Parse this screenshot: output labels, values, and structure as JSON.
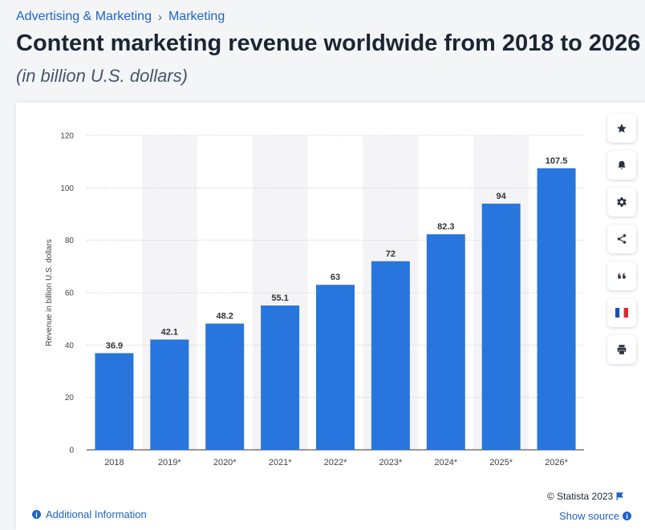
{
  "breadcrumb": {
    "items": [
      "Advertising & Marketing",
      "Marketing"
    ],
    "separator": "›"
  },
  "header": {
    "title": "Content marketing revenue worldwide from 2018 to 2026",
    "subtitle": "(in billion U.S. dollars)"
  },
  "chart_data": {
    "type": "bar",
    "categories": [
      "2018",
      "2019*",
      "2020*",
      "2021*",
      "2022*",
      "2023*",
      "2024*",
      "2025*",
      "2026*"
    ],
    "values": [
      36.9,
      42.1,
      48.2,
      55.1,
      63,
      72,
      82.3,
      94,
      107.5
    ],
    "data_labels": [
      "36.9",
      "42.1",
      "48.2",
      "55.1",
      "63",
      "72",
      "82.3",
      "94",
      "107.5"
    ],
    "ylabel": "Revenue in billion U.S. dollars",
    "xlabel": "",
    "ylim": [
      0,
      120
    ],
    "yticks": [
      0,
      20,
      40,
      60,
      80,
      100,
      120
    ],
    "grid": true,
    "bar_color": "#2876dd",
    "alt_column_shading": true
  },
  "sidebar": {
    "buttons": [
      {
        "name": "favorite",
        "icon": "star-icon"
      },
      {
        "name": "notification",
        "icon": "bell-icon"
      },
      {
        "name": "settings",
        "icon": "gear-icon"
      },
      {
        "name": "share",
        "icon": "share-icon"
      },
      {
        "name": "cite",
        "icon": "quote-icon"
      },
      {
        "name": "language",
        "icon": "french-flag-icon"
      },
      {
        "name": "print",
        "icon": "printer-icon"
      }
    ]
  },
  "footer": {
    "credit": "© Statista 2023",
    "show_source": "Show source",
    "additional_info": "Additional Information"
  },
  "colors": {
    "accent": "#1f63c6",
    "bar": "#2876dd",
    "title": "#1b2533",
    "shade": "#f4f4f6"
  }
}
